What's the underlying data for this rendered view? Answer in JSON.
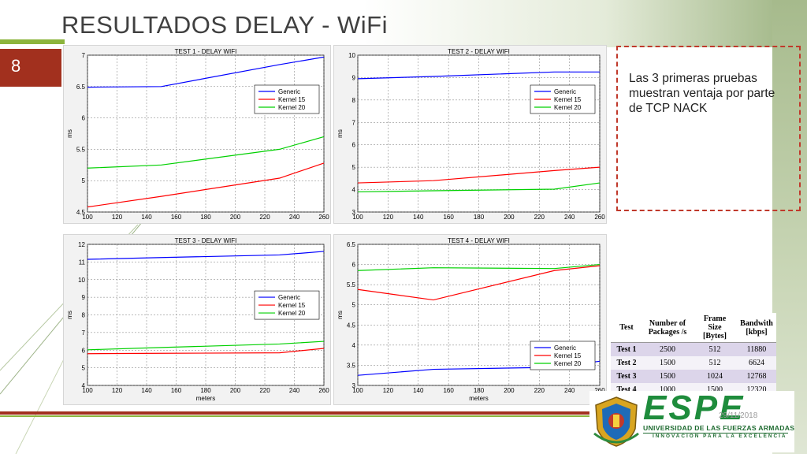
{
  "slide": {
    "title": "RESULTADOS DELAY - WiFi",
    "number": "8",
    "date": "29/11/2018"
  },
  "note": {
    "text": "Las 3 primeras pruebas muestran ventaja por parte de TCP NACK"
  },
  "table": {
    "headers": [
      "Test",
      "Number of Packages /s",
      "Frame Size [Bytes]",
      "Bandwith [kbps]"
    ],
    "rows": [
      [
        "Test 1",
        "2500",
        "512",
        "11880"
      ],
      [
        "Test 2",
        "1500",
        "512",
        "6624"
      ],
      [
        "Test 3",
        "1500",
        "1024",
        "12768"
      ],
      [
        "Test 4",
        "1000",
        "1500",
        "12320"
      ]
    ]
  },
  "logo": {
    "name": "ESPE",
    "line1": "UNIVERSIDAD DE LAS FUERZAS ARMADAS",
    "line2": "INNOVACIÓN PARA LA EXCELENCIA"
  },
  "colors": {
    "Generic": "#0000ff",
    "Kernel 15": "#ff0000",
    "Kernel 20": "#00d000",
    "accent_red": "#a2301e",
    "accent_green": "#8cb43c"
  },
  "chart_data": [
    {
      "type": "line",
      "title": "TEST 1 - DELAY WIFI",
      "xlabel": "",
      "ylabel": "ms",
      "xlim": [
        100,
        260
      ],
      "ylim": [
        4.5,
        7
      ],
      "xticks": [
        100,
        120,
        140,
        160,
        180,
        200,
        220,
        240,
        260
      ],
      "yticks": [
        4.5,
        5,
        5.5,
        6,
        6.5,
        7
      ],
      "ytick_labels": [
        "4.5",
        "5",
        "5.5",
        "6",
        "6.5",
        "7"
      ],
      "x": [
        100,
        150,
        230,
        260
      ],
      "series": [
        {
          "name": "Generic",
          "values": [
            6.49,
            6.5,
            6.85,
            6.97
          ]
        },
        {
          "name": "Kernel 15",
          "values": [
            4.58,
            4.75,
            5.04,
            5.28
          ]
        },
        {
          "name": "Kernel 20",
          "values": [
            5.2,
            5.25,
            5.5,
            5.7
          ]
        }
      ],
      "legend": "top-right",
      "grid": true
    },
    {
      "type": "line",
      "title": "TEST 2 - DELAY WIFI",
      "xlabel": "",
      "ylabel": "ms",
      "xlim": [
        100,
        260
      ],
      "ylim": [
        3,
        10
      ],
      "xticks": [
        100,
        120,
        140,
        160,
        180,
        200,
        220,
        240,
        260
      ],
      "yticks": [
        3,
        4,
        5,
        6,
        7,
        8,
        9,
        10
      ],
      "ytick_labels": [
        "3",
        "4",
        "5",
        "6",
        "7",
        "8",
        "9",
        "10"
      ],
      "x": [
        100,
        150,
        230,
        260
      ],
      "series": [
        {
          "name": "Generic",
          "values": [
            8.95,
            9.05,
            9.25,
            9.25
          ]
        },
        {
          "name": "Kernel 15",
          "values": [
            4.3,
            4.4,
            4.85,
            5.0
          ]
        },
        {
          "name": "Kernel 20",
          "values": [
            3.9,
            3.95,
            4.02,
            4.3
          ]
        }
      ],
      "legend": "top-right",
      "grid": true
    },
    {
      "type": "line",
      "title": "TEST 3 - DELAY WIFI",
      "xlabel": "meters",
      "ylabel": "ms",
      "xlim": [
        100,
        260
      ],
      "ylim": [
        4,
        12
      ],
      "xticks": [
        100,
        120,
        140,
        160,
        180,
        200,
        220,
        240,
        260
      ],
      "yticks": [
        4,
        5,
        6,
        7,
        8,
        9,
        10,
        11,
        12
      ],
      "ytick_labels": [
        "4",
        "5",
        "6",
        "7",
        "8",
        "9",
        "10",
        "11",
        "12"
      ],
      "x": [
        100,
        150,
        230,
        260
      ],
      "series": [
        {
          "name": "Generic",
          "values": [
            11.15,
            11.25,
            11.4,
            11.6
          ]
        },
        {
          "name": "Kernel 15",
          "values": [
            5.8,
            5.82,
            5.85,
            6.1
          ]
        },
        {
          "name": "Kernel 20",
          "values": [
            6.02,
            6.15,
            6.35,
            6.5
          ]
        }
      ],
      "legend": "center-right",
      "grid": true
    },
    {
      "type": "line",
      "title": "TEST 4 - DELAY WIFI",
      "xlabel": "meters",
      "ylabel": "ms",
      "xlim": [
        100,
        260
      ],
      "ylim": [
        3,
        6.5
      ],
      "xticks": [
        100,
        120,
        140,
        160,
        180,
        200,
        220,
        240,
        260
      ],
      "yticks": [
        3,
        3.5,
        4,
        4.5,
        5,
        5.5,
        6,
        6.5
      ],
      "ytick_labels": [
        "3",
        "3.5",
        "4",
        "4.5",
        "5",
        "5.5",
        "6",
        "6.5"
      ],
      "x": [
        100,
        150,
        230,
        260
      ],
      "series": [
        {
          "name": "Generic",
          "values": [
            3.25,
            3.4,
            3.45,
            3.6
          ]
        },
        {
          "name": "Kernel 15",
          "values": [
            5.38,
            5.12,
            5.85,
            5.97
          ]
        },
        {
          "name": "Kernel 20",
          "values": [
            5.85,
            5.92,
            5.9,
            6.0
          ]
        }
      ],
      "legend": "bottom-right",
      "grid": true
    }
  ]
}
